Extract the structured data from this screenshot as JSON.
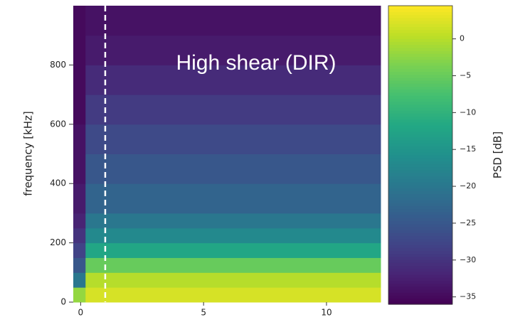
{
  "chart_data": {
    "type": "heatmap",
    "ylabel": "frequency [kHz]",
    "colorbar_label": "PSD [dB]",
    "annotation": "High shear (DIR)",
    "colormap": "viridis",
    "xlim": [
      -0.3,
      12.2
    ],
    "xticks": [
      0,
      5,
      10
    ],
    "ylim": [
      0,
      1000
    ],
    "yticks": [
      0,
      200,
      400,
      600,
      800
    ],
    "clim": [
      -36,
      4.5
    ],
    "cticks": [
      {
        "value": 0,
        "label": "0"
      },
      {
        "value": -5,
        "label": "−5"
      },
      {
        "value": -10,
        "label": "−10"
      },
      {
        "value": -15,
        "label": "−15"
      },
      {
        "value": -20,
        "label": "−20"
      },
      {
        "value": -25,
        "label": "−25"
      },
      {
        "value": -30,
        "label": "−30"
      },
      {
        "value": -35,
        "label": "−35"
      }
    ],
    "x_edges": [
      -0.3,
      0.2,
      12.2
    ],
    "y_edges": [
      0,
      50,
      100,
      150,
      200,
      250,
      300,
      400,
      500,
      600,
      700,
      800,
      900,
      1000
    ],
    "z": [
      [
        -2,
        2
      ],
      [
        -20,
        0
      ],
      [
        -25,
        -5
      ],
      [
        -28,
        -12
      ],
      [
        -30,
        -17
      ],
      [
        -32,
        -20
      ],
      [
        -33,
        -23
      ],
      [
        -34,
        -25
      ],
      [
        -34,
        -27
      ],
      [
        -35,
        -29
      ],
      [
        -35,
        -31
      ],
      [
        -35,
        -33
      ],
      [
        -35,
        -34
      ]
    ],
    "vline_x": 1
  }
}
